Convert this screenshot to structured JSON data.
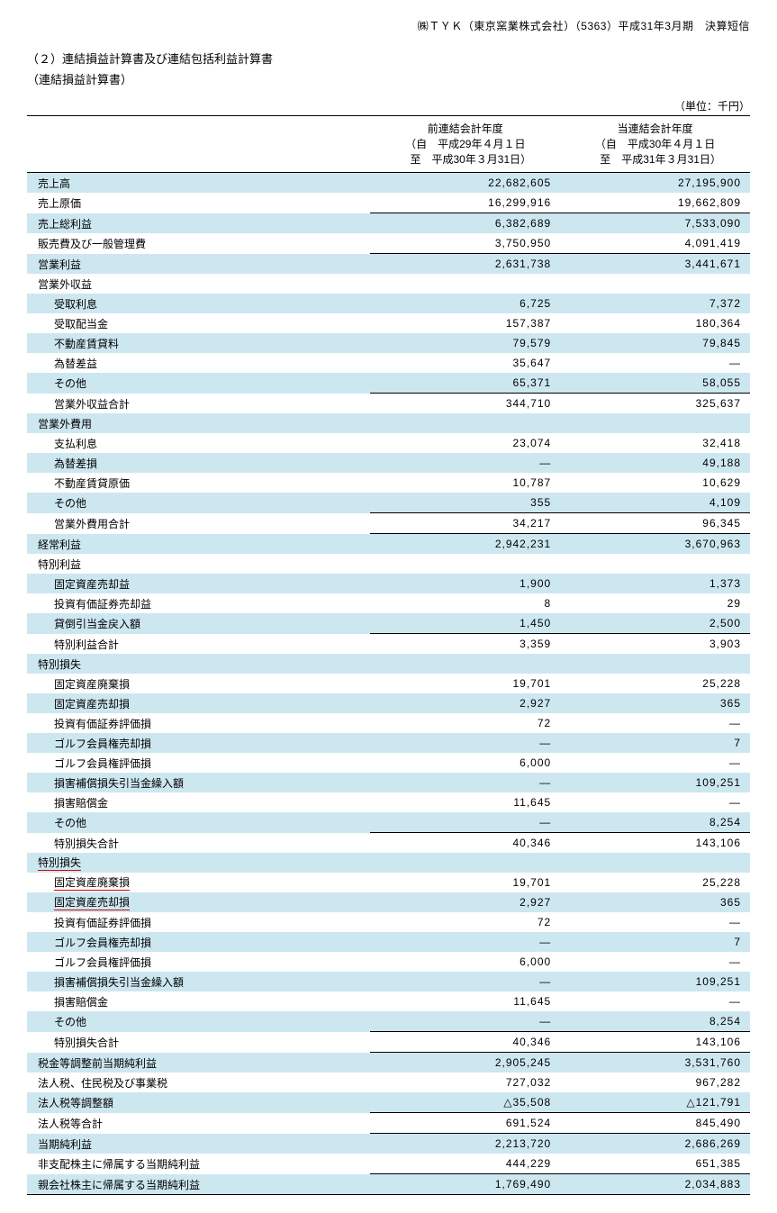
{
  "header_right": "㈱ＴＹＫ（東京窯業株式会社）（5363）平成31年3月期　決算短信",
  "title": "（２）連結損益計算書及び連結包括利益計算書",
  "subtitle": "（連結損益計算書）",
  "unit": "（単位：千円）",
  "period_headers": {
    "prev": {
      "l1": "前連結会計年度",
      "l2": "（自　平成29年４月１日",
      "l3": "　至　平成30年３月31日）"
    },
    "curr": {
      "l1": "当連結会計年度",
      "l2": "（自　平成30年４月１日",
      "l3": "　至　平成31年３月31日）"
    }
  },
  "colors": {
    "shade_bg": "#cde7f0",
    "red_underline": "#d00000",
    "text": "#000000",
    "border": "#000000"
  },
  "rows": [
    {
      "label": "売上高",
      "v1": "22,682,605",
      "v2": "27,195,900",
      "indent": 1,
      "shade": true
    },
    {
      "label": "売上原価",
      "v1": "16,299,916",
      "v2": "19,662,809",
      "indent": 1
    },
    {
      "label": "売上総利益",
      "v1": "6,382,689",
      "v2": "7,533,090",
      "indent": 1,
      "shade": true,
      "sum_top": true
    },
    {
      "label": "販売費及び一般管理費",
      "v1": "3,750,950",
      "v2": "4,091,419",
      "indent": 1
    },
    {
      "label": "営業利益",
      "v1": "2,631,738",
      "v2": "3,441,671",
      "indent": 1,
      "shade": true,
      "sum_top": true
    },
    {
      "label": "営業外収益",
      "v1": "",
      "v2": "",
      "indent": 1
    },
    {
      "label": "受取利息",
      "v1": "6,725",
      "v2": "7,372",
      "indent": 2,
      "shade": true
    },
    {
      "label": "受取配当金",
      "v1": "157,387",
      "v2": "180,364",
      "indent": 2
    },
    {
      "label": "不動産賃貸料",
      "v1": "79,579",
      "v2": "79,845",
      "indent": 2,
      "shade": true
    },
    {
      "label": "為替差益",
      "v1": "35,647",
      "v2": "—",
      "indent": 2
    },
    {
      "label": "その他",
      "v1": "65,371",
      "v2": "58,055",
      "indent": 2,
      "shade": true
    },
    {
      "label": "営業外収益合計",
      "v1": "344,710",
      "v2": "325,637",
      "indent": 2,
      "sum_top": true
    },
    {
      "label": "営業外費用",
      "v1": "",
      "v2": "",
      "indent": 1,
      "shade": true
    },
    {
      "label": "支払利息",
      "v1": "23,074",
      "v2": "32,418",
      "indent": 2
    },
    {
      "label": "為替差損",
      "v1": "—",
      "v2": "49,188",
      "indent": 2,
      "shade": true
    },
    {
      "label": "不動産賃貸原価",
      "v1": "10,787",
      "v2": "10,629",
      "indent": 2
    },
    {
      "label": "その他",
      "v1": "355",
      "v2": "4,109",
      "indent": 2,
      "shade": true
    },
    {
      "label": "営業外費用合計",
      "v1": "34,217",
      "v2": "96,345",
      "indent": 2,
      "sum_top": true
    },
    {
      "label": "経常利益",
      "v1": "2,942,231",
      "v2": "3,670,963",
      "indent": 1,
      "shade": true,
      "sum_top": true
    },
    {
      "label": "特別利益",
      "v1": "",
      "v2": "",
      "indent": 1
    },
    {
      "label": "固定資産売却益",
      "v1": "1,900",
      "v2": "1,373",
      "indent": 2,
      "shade": true
    },
    {
      "label": "投資有価証券売却益",
      "v1": "8",
      "v2": "29",
      "indent": 2
    },
    {
      "label": "貸倒引当金戻入額",
      "v1": "1,450",
      "v2": "2,500",
      "indent": 2,
      "shade": true
    },
    {
      "label": "特別利益合計",
      "v1": "3,359",
      "v2": "3,903",
      "indent": 2,
      "sum_top": true
    },
    {
      "label": "特別損失",
      "v1": "",
      "v2": "",
      "indent": 1,
      "shade": true
    },
    {
      "label": "固定資産廃棄損",
      "v1": "19,701",
      "v2": "25,228",
      "indent": 2
    },
    {
      "label": "固定資産売却損",
      "v1": "2,927",
      "v2": "365",
      "indent": 2,
      "shade": true
    },
    {
      "label": "投資有価証券評価損",
      "v1": "72",
      "v2": "—",
      "indent": 2
    },
    {
      "label": "ゴルフ会員権売却損",
      "v1": "—",
      "v2": "7",
      "indent": 2,
      "shade": true
    },
    {
      "label": "ゴルフ会員権評価損",
      "v1": "6,000",
      "v2": "—",
      "indent": 2
    },
    {
      "label": "損害補償損失引当金繰入額",
      "v1": "—",
      "v2": "109,251",
      "indent": 2,
      "shade": true
    },
    {
      "label": "損害賠償金",
      "v1": "11,645",
      "v2": "—",
      "indent": 2
    },
    {
      "label": "その他",
      "v1": "—",
      "v2": "8,254",
      "indent": 2,
      "shade": true
    },
    {
      "label": "特別損失合計",
      "v1": "40,346",
      "v2": "143,106",
      "indent": 2,
      "sum_top": true
    },
    {
      "label": "特別損失",
      "v1": "",
      "v2": "",
      "indent": 1,
      "shade": true,
      "red": true
    },
    {
      "label": "固定資産廃棄損",
      "v1": "19,701",
      "v2": "25,228",
      "indent": 2,
      "red": true
    },
    {
      "label": "固定資産売却損",
      "v1": "2,927",
      "v2": "365",
      "indent": 2,
      "shade": true,
      "red": true
    },
    {
      "label": "投資有価証券評価損",
      "v1": "72",
      "v2": "—",
      "indent": 2
    },
    {
      "label": "ゴルフ会員権売却損",
      "v1": "—",
      "v2": "7",
      "indent": 2,
      "shade": true
    },
    {
      "label": "ゴルフ会員権評価損",
      "v1": "6,000",
      "v2": "—",
      "indent": 2
    },
    {
      "label": "損害補償損失引当金繰入額",
      "v1": "—",
      "v2": "109,251",
      "indent": 2,
      "shade": true
    },
    {
      "label": "損害賠償金",
      "v1": "11,645",
      "v2": "—",
      "indent": 2
    },
    {
      "label": "その他",
      "v1": "—",
      "v2": "8,254",
      "indent": 2,
      "shade": true
    },
    {
      "label": "特別損失合計",
      "v1": "40,346",
      "v2": "143,106",
      "indent": 2,
      "sum_top": true
    },
    {
      "label": "税金等調整前当期純利益",
      "v1": "2,905,245",
      "v2": "3,531,760",
      "indent": 1,
      "shade": true,
      "sum_top": true
    },
    {
      "label": "法人税、住民税及び事業税",
      "v1": "727,032",
      "v2": "967,282",
      "indent": 1
    },
    {
      "label": "法人税等調整額",
      "v1": "△35,508",
      "v2": "△121,791",
      "indent": 1,
      "shade": true
    },
    {
      "label": "法人税等合計",
      "v1": "691,524",
      "v2": "845,490",
      "indent": 1,
      "sum_top": true
    },
    {
      "label": "当期純利益",
      "v1": "2,213,720",
      "v2": "2,686,269",
      "indent": 1,
      "shade": true,
      "sum_top": true
    },
    {
      "label": "非支配株主に帰属する当期純利益",
      "v1": "444,229",
      "v2": "651,385",
      "indent": 1
    },
    {
      "label": "親会社株主に帰属する当期純利益",
      "v1": "1,769,490",
      "v2": "2,034,883",
      "indent": 1,
      "shade": true,
      "sum_top": true,
      "sum_bot": true
    }
  ]
}
